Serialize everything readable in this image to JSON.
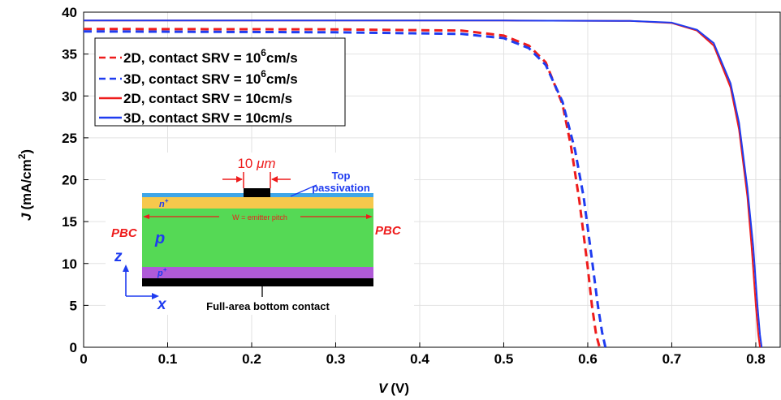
{
  "chart_data": {
    "type": "line",
    "xlabel": {
      "var": "V",
      "unit": "(V)"
    },
    "ylabel": {
      "var": "J",
      "unit": "(mA/cm",
      "sup": "2",
      "close": ")"
    },
    "xlim": [
      0,
      0.83
    ],
    "ylim": [
      0,
      40
    ],
    "xticks": [
      0,
      0.1,
      0.2,
      0.3,
      0.4,
      0.5,
      0.6,
      0.7,
      0.8
    ],
    "xticklabels": [
      "0",
      "0.1",
      "0.2",
      "0.3",
      "0.4",
      "0.5",
      "0.6",
      "0.7",
      "0.8"
    ],
    "yticks": [
      0,
      5,
      10,
      15,
      20,
      25,
      30,
      35,
      40
    ],
    "yticklabels": [
      "0",
      "5",
      "10",
      "15",
      "20",
      "25",
      "30",
      "35",
      "40"
    ],
    "grid": true,
    "legend_position": "top-left",
    "series": [
      {
        "name": "2D, contact SRV = 10",
        "sup": "6",
        "suffix": "cm/s",
        "color": "#ee1c1c",
        "dash": true,
        "x": [
          0,
          0.3,
          0.45,
          0.5,
          0.53,
          0.55,
          0.57,
          0.58,
          0.59,
          0.6,
          0.605,
          0.61,
          0.614
        ],
        "y": [
          38.0,
          37.95,
          37.8,
          37.2,
          36.0,
          34.0,
          29.0,
          24.0,
          17.5,
          9.5,
          5.0,
          1.5,
          0
        ]
      },
      {
        "name": "3D, contact SRV = 10",
        "sup": "6",
        "suffix": "cm/s",
        "color": "#1f3cf0",
        "dash": true,
        "x": [
          0,
          0.3,
          0.45,
          0.5,
          0.53,
          0.55,
          0.57,
          0.585,
          0.595,
          0.605,
          0.612,
          0.617,
          0.621
        ],
        "y": [
          37.7,
          37.6,
          37.4,
          36.9,
          35.7,
          33.7,
          29.3,
          23.5,
          18.0,
          10.5,
          5.0,
          1.8,
          0
        ]
      },
      {
        "name": "2D, contact SRV = 10cm/s",
        "color": "#ee1c1c",
        "dash": false,
        "x": [
          0,
          0.5,
          0.65,
          0.7,
          0.73,
          0.75,
          0.77,
          0.78,
          0.79,
          0.795,
          0.8,
          0.803,
          0.805
        ],
        "y": [
          39.0,
          39.0,
          38.95,
          38.7,
          37.8,
          36.0,
          31.0,
          26.0,
          18.0,
          12.0,
          5.0,
          1.5,
          0
        ]
      },
      {
        "name": "3D, contact SRV = 10cm/s",
        "color": "#1f3cf0",
        "dash": false,
        "x": [
          0,
          0.5,
          0.65,
          0.7,
          0.73,
          0.75,
          0.77,
          0.78,
          0.79,
          0.797,
          0.802,
          0.805,
          0.807
        ],
        "y": [
          39.0,
          39.0,
          38.95,
          38.75,
          37.9,
          36.3,
          31.5,
          26.8,
          19.0,
          12.0,
          5.0,
          1.5,
          0
        ]
      }
    ]
  },
  "inset": {
    "width_label": {
      "num": "10 ",
      "unit": "μm"
    },
    "top_passivation": [
      "Top",
      "passivation"
    ],
    "n_plus": {
      "base": "n",
      "sup": "+"
    },
    "p_plus": {
      "base": "p",
      "sup": "+"
    },
    "p_region": "p",
    "pitch_label": "W = emitter pitch",
    "pbc_left": "PBC",
    "pbc_right": "PBC",
    "z_label": "z",
    "x_label": "x",
    "bottom_contact": "Full-area bottom contact"
  },
  "colors": {
    "red": "#ee1c1c",
    "blue": "#1f3cf0",
    "passivation": "#3ea6e8",
    "n_layer": "#f6c84c",
    "p_layer": "#55d955",
    "p_plus_layer": "#b05ad8",
    "contact": "#000000",
    "grid": "#e2e2e2"
  }
}
